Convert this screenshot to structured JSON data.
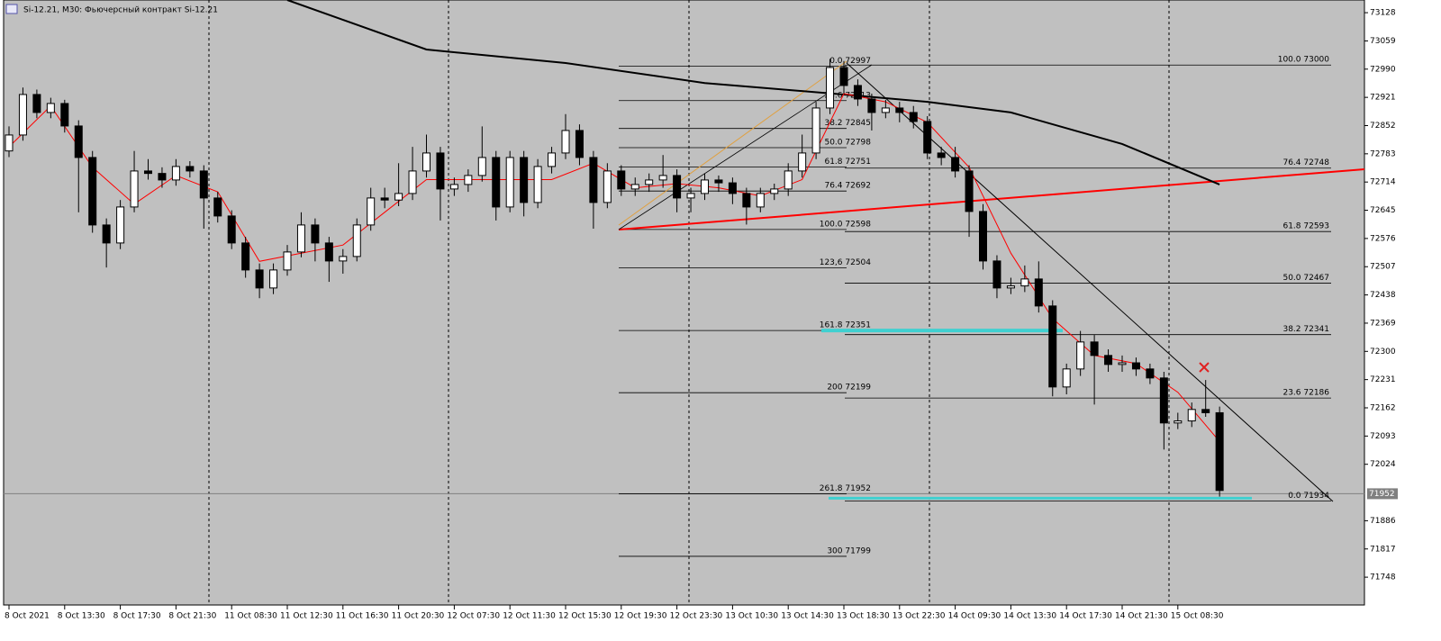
{
  "chart_data": {
    "type": "candlestick",
    "title": "Si-12.21, M30:  Фьючерсный контракт Si-12.21",
    "ylim": [
      71680,
      73159
    ],
    "yticks": [
      73128,
      73059,
      72990,
      72921,
      72852,
      72783,
      72714,
      72645,
      72576,
      72507,
      72438,
      72369,
      72300,
      72231,
      72162,
      72093,
      72024,
      71886,
      71817,
      71748
    ],
    "current_price": 71952,
    "categories": [
      "8 Oct 2021",
      null,
      null,
      null,
      "8 Oct 13:30",
      null,
      null,
      null,
      "8 Oct 17:30",
      null,
      null,
      null,
      "8 Oct 21:30",
      null,
      null,
      null,
      "11 Oct 08:30",
      null,
      null,
      null,
      "11 Oct 12:30",
      null,
      null,
      null,
      "11 Oct 16:30",
      null,
      null,
      null,
      "11 Oct 20:30",
      null,
      null,
      null,
      "12 Oct 07:30",
      null,
      null,
      null,
      "12 Oct 11:30",
      null,
      null,
      null,
      "12 Oct 15:30",
      null,
      null,
      null,
      "12 Oct 19:30",
      null,
      null,
      null,
      "12 Oct 23:30",
      null,
      null,
      null,
      "13 Oct 10:30",
      null,
      null,
      null,
      "13 Oct 14:30",
      null,
      null,
      null,
      "13 Oct 18:30",
      null,
      null,
      null,
      "13 Oct 22:30",
      null,
      null,
      null,
      "14 Oct 09:30",
      null,
      null,
      null,
      "14 Oct 13:30",
      null,
      null,
      null,
      "14 Oct 17:30",
      null,
      null,
      null,
      "14 Oct 21:30",
      null,
      null,
      null,
      "15 Oct 08:30",
      null,
      null,
      null
    ],
    "ohlc": [
      [
        72790,
        72850,
        72775,
        72829
      ],
      [
        72829,
        72945,
        72815,
        72928
      ],
      [
        72928,
        72940,
        72870,
        72884
      ],
      [
        72884,
        72920,
        72870,
        72906
      ],
      [
        72906,
        72915,
        72835,
        72851
      ],
      [
        72851,
        72865,
        72640,
        72774
      ],
      [
        72774,
        72790,
        72590,
        72609
      ],
      [
        72609,
        72625,
        72505,
        72565
      ],
      [
        72565,
        72670,
        72550,
        72653
      ],
      [
        72653,
        72790,
        72640,
        72741
      ],
      [
        72741,
        72770,
        72720,
        72735
      ],
      [
        72735,
        72750,
        72700,
        72719
      ],
      [
        72719,
        72770,
        72705,
        72752
      ],
      [
        72752,
        72765,
        72725,
        72741
      ],
      [
        72741,
        72755,
        72600,
        72675
      ],
      [
        72675,
        72690,
        72615,
        72631
      ],
      [
        72631,
        72645,
        72550,
        72565
      ],
      [
        72565,
        72580,
        72480,
        72499
      ],
      [
        72499,
        72515,
        72430,
        72455
      ],
      [
        72455,
        72515,
        72440,
        72499
      ],
      [
        72499,
        72560,
        72485,
        72543
      ],
      [
        72543,
        72640,
        72530,
        72609
      ],
      [
        72609,
        72625,
        72520,
        72565
      ],
      [
        72565,
        72580,
        72470,
        72521
      ],
      [
        72521,
        72550,
        72490,
        72532
      ],
      [
        72532,
        72625,
        72520,
        72609
      ],
      [
        72609,
        72700,
        72595,
        72675
      ],
      [
        72675,
        72700,
        72650,
        72670
      ],
      [
        72670,
        72760,
        72655,
        72686
      ],
      [
        72686,
        72800,
        72670,
        72741
      ],
      [
        72741,
        72830,
        72725,
        72785
      ],
      [
        72785,
        72800,
        72620,
        72697
      ],
      [
        72697,
        72725,
        72680,
        72708
      ],
      [
        72708,
        72745,
        72690,
        72730
      ],
      [
        72730,
        72850,
        72715,
        72774
      ],
      [
        72774,
        72790,
        72620,
        72653
      ],
      [
        72653,
        72790,
        72640,
        72774
      ],
      [
        72774,
        72790,
        72630,
        72664
      ],
      [
        72664,
        72770,
        72650,
        72752
      ],
      [
        72752,
        72800,
        72735,
        72785
      ],
      [
        72785,
        72880,
        72770,
        72840
      ],
      [
        72840,
        72855,
        72755,
        72774
      ],
      [
        72774,
        72790,
        72600,
        72664
      ],
      [
        72664,
        72760,
        72650,
        72741
      ],
      [
        72741,
        72755,
        72680,
        72697
      ],
      [
        72697,
        72725,
        72680,
        72708
      ],
      [
        72708,
        72735,
        72690,
        72719
      ],
      [
        72719,
        72780,
        72700,
        72730
      ],
      [
        72730,
        72745,
        72640,
        72675
      ],
      [
        72675,
        72700,
        72640,
        72686
      ],
      [
        72686,
        72735,
        72670,
        72719
      ],
      [
        72719,
        72730,
        72690,
        72712
      ],
      [
        72712,
        72725,
        72660,
        72686
      ],
      [
        72686,
        72700,
        72610,
        72653
      ],
      [
        72653,
        72700,
        72640,
        72686
      ],
      [
        72686,
        72710,
        72670,
        72697
      ],
      [
        72697,
        72760,
        72680,
        72741
      ],
      [
        72741,
        72830,
        72725,
        72785
      ],
      [
        72785,
        72910,
        72770,
        72895
      ],
      [
        72895,
        73015,
        72880,
        72994
      ],
      [
        72994,
        73010,
        72930,
        72950
      ],
      [
        72950,
        72965,
        72900,
        72917
      ],
      [
        72917,
        72930,
        72840,
        72884
      ],
      [
        72884,
        72915,
        72870,
        72895
      ],
      [
        72895,
        72910,
        72860,
        72884
      ],
      [
        72884,
        72900,
        72845,
        72862
      ],
      [
        72862,
        72875,
        72770,
        72785
      ],
      [
        72785,
        72800,
        72755,
        72774
      ],
      [
        72774,
        72800,
        72725,
        72741
      ],
      [
        72741,
        72755,
        72580,
        72642
      ],
      [
        72642,
        72660,
        72500,
        72521
      ],
      [
        72521,
        72535,
        72430,
        72455
      ],
      [
        72455,
        72480,
        72440,
        72460
      ],
      [
        72460,
        72510,
        72445,
        72477
      ],
      [
        72477,
        72520,
        72395,
        72411
      ],
      [
        72411,
        72425,
        72190,
        72213
      ],
      [
        72213,
        72270,
        72195,
        72257
      ],
      [
        72257,
        72350,
        72240,
        72323
      ],
      [
        72323,
        72340,
        72170,
        72290
      ],
      [
        72290,
        72305,
        72250,
        72268
      ],
      [
        72268,
        72290,
        72250,
        72272
      ],
      [
        72272,
        72285,
        72240,
        72257
      ],
      [
        72257,
        72270,
        72220,
        72235
      ],
      [
        72235,
        72250,
        72060,
        72125
      ],
      [
        72125,
        72150,
        72110,
        72130
      ],
      [
        72130,
        72175,
        72115,
        72158
      ],
      [
        72158,
        72230,
        72140,
        72150
      ],
      [
        72150,
        72165,
        71945,
        71960
      ]
    ],
    "lines": [
      {
        "color": "#000000",
        "x": [
          20,
          30,
          40,
          50,
          60,
          66,
          72,
          80,
          87
        ],
        "values": [
          73159,
          73038,
          73005,
          72956,
          72928,
          72910,
          72884,
          72807,
          72708
        ]
      },
      {
        "color": "#ff0000",
        "x": [
          0,
          3,
          6,
          9,
          12,
          15,
          18,
          21,
          24,
          27,
          30,
          33,
          36,
          39,
          42,
          45,
          48,
          51,
          54,
          57,
          60,
          63,
          66,
          69,
          72,
          75,
          78,
          81,
          84,
          87
        ],
        "values": [
          72800,
          72900,
          72750,
          72660,
          72730,
          72690,
          72520,
          72540,
          72560,
          72640,
          72720,
          72720,
          72720,
          72720,
          72760,
          72700,
          72710,
          72700,
          72680,
          72720,
          72930,
          72910,
          72860,
          72750,
          72540,
          72380,
          72290,
          72270,
          72200,
          72080
        ]
      }
    ],
    "fib_left": [
      {
        "value": 72997,
        "label": "0.0 72997"
      },
      {
        "value": 72913,
        "label": "23.6 72913"
      },
      {
        "value": 72845,
        "label": "38.2 72845"
      },
      {
        "value": 72798,
        "label": "50.0 72798"
      },
      {
        "value": 72751,
        "label": "61.8 72751"
      },
      {
        "value": 72692,
        "label": "76.4 72692"
      },
      {
        "value": 72598,
        "label": "100.0 72598"
      },
      {
        "value": 72504,
        "label": "123,6 72504"
      },
      {
        "value": 72351,
        "label": "161.8 72351"
      },
      {
        "value": 72199,
        "label": "200 72199"
      },
      {
        "value": 71952,
        "label": "261.8 71952"
      },
      {
        "value": 71799,
        "label": "300 71799"
      }
    ],
    "fib_right": [
      {
        "value": 73000,
        "label": "100.0 73000"
      },
      {
        "value": 72748,
        "label": "76.4 72748"
      },
      {
        "value": 72593,
        "label": "61.8 72593"
      },
      {
        "value": 72467,
        "label": "50.0 72467"
      },
      {
        "value": 72341,
        "label": "38.2 72341"
      },
      {
        "value": 72186,
        "label": "23.6 72186"
      },
      {
        "value": 71934,
        "label": "0.0 71934"
      }
    ]
  }
}
